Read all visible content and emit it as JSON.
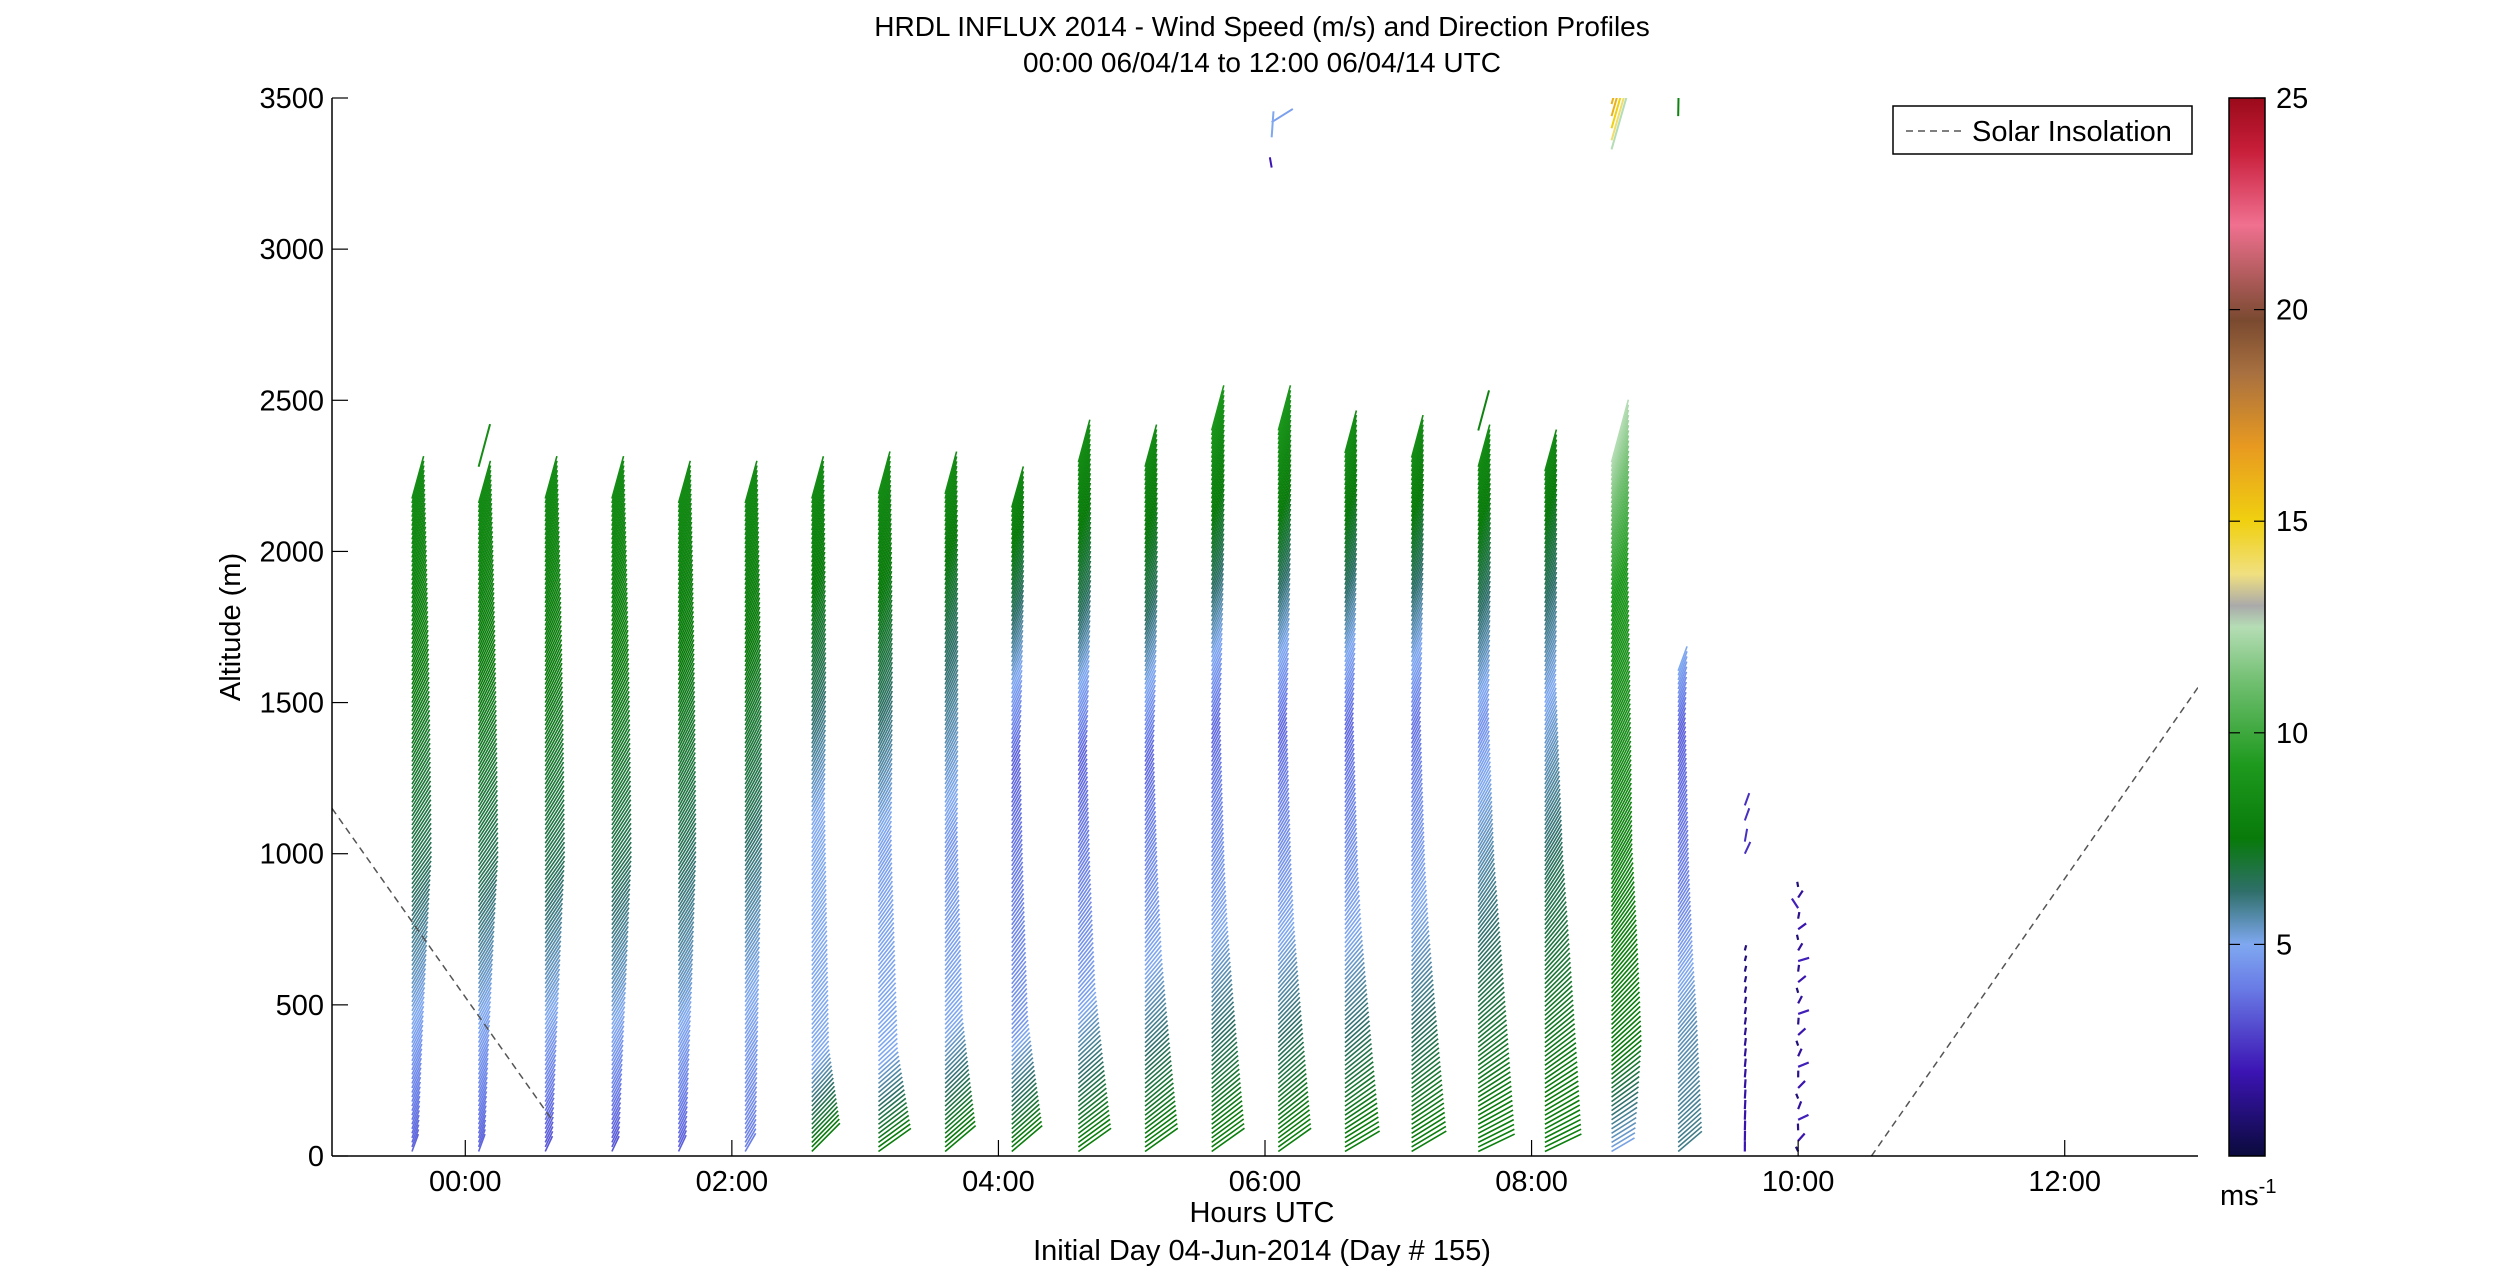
{
  "chart_data": {
    "type": "wind-profile-barbs",
    "title": "HRDL INFLUX 2014 - Wind Speed (m/s) and Direction Profiles",
    "subtitle": "00:00 06/04/14 to 12:00 06/04/14  UTC",
    "xlabel": "Hours UTC",
    "xlabel2": "Initial Day 04-Jun-2014 (Day # 155)",
    "ylabel": "Altitude (m)",
    "xlim": [
      -1.0,
      13.0
    ],
    "ylim": [
      0,
      3500
    ],
    "x_ticks": [
      0,
      2,
      4,
      6,
      8,
      10,
      12
    ],
    "x_tick_labels": [
      "00:00",
      "02:00",
      "04:00",
      "06:00",
      "08:00",
      "10:00",
      "12:00"
    ],
    "y_ticks": [
      0,
      500,
      1000,
      1500,
      2000,
      2500,
      3000,
      3500
    ],
    "y_tick_labels": [
      "0",
      "500",
      "1000",
      "1500",
      "2000",
      "2500",
      "3000",
      "3500"
    ],
    "grid": false,
    "legend": {
      "placement": "top-right",
      "entries": [
        {
          "label": "Solar Insolation",
          "style": "dashed",
          "color": "#555555"
        }
      ]
    },
    "solar_insolation": [
      {
        "x": [
          -1.0,
          0.65
        ],
        "y": [
          1150,
          120
        ]
      },
      {
        "x": [
          10.55,
          13.0
        ],
        "y": [
          0,
          1550
        ]
      }
    ],
    "colorbar": {
      "unit_label": "ms",
      "unit_exponent": "-1",
      "range": [
        0,
        25
      ],
      "ticks": [
        5,
        10,
        15,
        20,
        25
      ],
      "tick_labels": [
        "5",
        "10",
        "15",
        "20",
        "25"
      ],
      "colors": [
        "#0a0a3c",
        "#3c14b4",
        "#6a7de6",
        "#7fa8f0",
        "#2f6f6a",
        "#087a0a",
        "#1e9a1e",
        "#73c073",
        "#b5ddb5",
        "#aaaaaa",
        "#f0e080",
        "#f0d010",
        "#e89a20",
        "#a87040",
        "#7a4a30",
        "#f07090",
        "#c81e3a",
        "#9a0a1a"
      ],
      "stops": [
        0,
        0.08,
        0.16,
        0.2,
        0.25,
        0.3,
        0.37,
        0.45,
        0.5,
        0.52,
        0.55,
        0.6,
        0.67,
        0.74,
        0.79,
        0.88,
        0.95,
        1.0
      ]
    },
    "profiles": [
      {
        "time": -0.4,
        "top": 2180,
        "dir": [
          [
            0,
            200
          ],
          [
            900,
            215
          ],
          [
            2200,
            195
          ]
        ],
        "spd": [
          [
            0,
            3.5
          ],
          [
            500,
            5.2
          ],
          [
            900,
            6.5
          ],
          [
            2200,
            8.5
          ]
        ]
      },
      {
        "time": 0.1,
        "top": 2170,
        "dir": [
          [
            0,
            200
          ],
          [
            900,
            215
          ],
          [
            2200,
            195
          ]
        ],
        "spd": [
          [
            0,
            3.5
          ],
          [
            500,
            5.2
          ],
          [
            900,
            6.5
          ],
          [
            2200,
            8.5
          ]
        ],
        "extra": [
          {
            "alt": 2280,
            "dir": 195,
            "spd": 8.5
          }
        ]
      },
      {
        "time": 0.6,
        "top": 2180,
        "dir": [
          [
            0,
            205
          ],
          [
            900,
            215
          ],
          [
            2200,
            195
          ]
        ],
        "spd": [
          [
            0,
            3.2
          ],
          [
            500,
            5.2
          ],
          [
            900,
            6.5
          ],
          [
            2200,
            8.5
          ]
        ]
      },
      {
        "time": 1.1,
        "top": 2180,
        "dir": [
          [
            0,
            205
          ],
          [
            900,
            215
          ],
          [
            2200,
            195
          ]
        ],
        "spd": [
          [
            0,
            3.2
          ],
          [
            500,
            5.3
          ],
          [
            900,
            6.5
          ],
          [
            2200,
            8.5
          ]
        ]
      },
      {
        "time": 1.6,
        "top": 2170,
        "dir": [
          [
            0,
            205
          ],
          [
            900,
            212
          ],
          [
            2200,
            195
          ]
        ],
        "spd": [
          [
            0,
            3.4
          ],
          [
            500,
            5.3
          ],
          [
            1000,
            6.5
          ],
          [
            2200,
            8.5
          ]
        ]
      },
      {
        "time": 2.1,
        "top": 2170,
        "dir": [
          [
            0,
            210
          ],
          [
            900,
            212
          ],
          [
            2200,
            195
          ]
        ],
        "spd": [
          [
            0,
            4.0
          ],
          [
            600,
            5.2
          ],
          [
            1100,
            6.5
          ],
          [
            2200,
            8.5
          ]
        ]
      },
      {
        "time": 2.6,
        "top": 2180,
        "dir": [
          [
            0,
            225
          ],
          [
            900,
            212
          ],
          [
            2200,
            195
          ]
        ],
        "spd": [
          [
            0,
            7.8
          ],
          [
            300,
            5.0
          ],
          [
            1100,
            5.0
          ],
          [
            1500,
            6.5
          ],
          [
            2200,
            8.5
          ]
        ]
      },
      {
        "time": 3.1,
        "top": 2190,
        "dir": [
          [
            0,
            235
          ],
          [
            900,
            212
          ],
          [
            2200,
            195
          ]
        ],
        "spd": [
          [
            0,
            7.8
          ],
          [
            300,
            5.0
          ],
          [
            1000,
            4.8
          ],
          [
            1500,
            6.5
          ],
          [
            2200,
            8.5
          ]
        ]
      },
      {
        "time": 3.6,
        "top": 2190,
        "dir": [
          [
            0,
            230
          ],
          [
            900,
            212
          ],
          [
            2200,
            195
          ]
        ],
        "spd": [
          [
            0,
            7.8
          ],
          [
            400,
            5.0
          ],
          [
            1000,
            4.6
          ],
          [
            1700,
            6.5
          ],
          [
            2200,
            8.5
          ]
        ]
      },
      {
        "time": 4.1,
        "top": 2150,
        "dir": [
          [
            0,
            230
          ],
          [
            900,
            212
          ],
          [
            2200,
            195
          ]
        ],
        "spd": [
          [
            0,
            7.8
          ],
          [
            400,
            4.6
          ],
          [
            1300,
            3.5
          ],
          [
            1800,
            6.5
          ],
          [
            2200,
            8.5
          ]
        ]
      },
      {
        "time": 4.6,
        "top": 2300,
        "dir": [
          [
            0,
            235
          ],
          [
            900,
            212
          ],
          [
            2300,
            195
          ]
        ],
        "spd": [
          [
            0,
            7.8
          ],
          [
            500,
            4.8
          ],
          [
            1300,
            3.5
          ],
          [
            1800,
            6.5
          ],
          [
            2300,
            8.5
          ]
        ]
      },
      {
        "time": 5.1,
        "top": 2290,
        "dir": [
          [
            0,
            235
          ],
          [
            900,
            212
          ],
          [
            2300,
            195
          ]
        ],
        "spd": [
          [
            0,
            7.8
          ],
          [
            600,
            5.0
          ],
          [
            1300,
            3.6
          ],
          [
            1800,
            6.5
          ],
          [
            2300,
            8.5
          ]
        ]
      },
      {
        "time": 5.6,
        "top": 2410,
        "dir": [
          [
            0,
            235
          ],
          [
            900,
            212
          ],
          [
            2400,
            195
          ]
        ],
        "spd": [
          [
            0,
            7.8
          ],
          [
            700,
            5.0
          ],
          [
            1400,
            3.6
          ],
          [
            1900,
            6.5
          ],
          [
            2400,
            9.0
          ]
        ]
      },
      {
        "time": 6.1,
        "top": 2410,
        "dir": [
          [
            0,
            235
          ],
          [
            900,
            212
          ],
          [
            2400,
            195
          ]
        ],
        "spd": [
          [
            0,
            7.8
          ],
          [
            700,
            5.0
          ],
          [
            1400,
            3.6
          ],
          [
            1900,
            6.5
          ],
          [
            2400,
            9.0
          ]
        ]
      },
      {
        "time": 6.6,
        "top": 2330,
        "dir": [
          [
            0,
            240
          ],
          [
            900,
            212
          ],
          [
            2300,
            195
          ]
        ],
        "spd": [
          [
            0,
            7.8
          ],
          [
            700,
            5.0
          ],
          [
            1400,
            3.6
          ],
          [
            1900,
            6.5
          ],
          [
            2300,
            8.5
          ]
        ]
      },
      {
        "time": 7.1,
        "top": 2310,
        "dir": [
          [
            0,
            240
          ],
          [
            900,
            212
          ],
          [
            2300,
            195
          ]
        ],
        "spd": [
          [
            0,
            7.8
          ],
          [
            700,
            5.2
          ],
          [
            1400,
            3.8
          ],
          [
            1900,
            6.5
          ],
          [
            2300,
            8.5
          ]
        ]
      },
      {
        "time": 7.6,
        "top": 2290,
        "dir": [
          [
            0,
            245
          ],
          [
            900,
            212
          ],
          [
            2300,
            195
          ]
        ],
        "spd": [
          [
            0,
            7.8
          ],
          [
            800,
            6.0
          ],
          [
            1400,
            4.5
          ],
          [
            1900,
            6.8
          ],
          [
            2300,
            8.5
          ]
        ],
        "extra": [
          {
            "alt": 2400,
            "dir": 195,
            "spd": 8.0
          }
        ]
      },
      {
        "time": 8.1,
        "top": 2270,
        "dir": [
          [
            0,
            245
          ],
          [
            900,
            212
          ],
          [
            2300,
            195
          ]
        ],
        "spd": [
          [
            0,
            7.8
          ],
          [
            900,
            6.5
          ],
          [
            1500,
            5.0
          ],
          [
            2000,
            7.0
          ],
          [
            2300,
            8.5
          ]
        ]
      },
      {
        "time": 8.6,
        "top": 2300,
        "dir": [
          [
            0,
            240
          ],
          [
            900,
            210
          ],
          [
            2300,
            195
          ]
        ],
        "spd": [
          [
            0,
            5.0
          ],
          [
            300,
            7.5
          ],
          [
            1000,
            8.0
          ],
          [
            1800,
            9.0
          ],
          [
            2300,
            12.5
          ]
        ],
        "extra": [
          {
            "alt": 3480,
            "dir": 196,
            "spd": 16.0
          },
          {
            "alt": 3440,
            "dir": 196,
            "spd": 16.0
          },
          {
            "alt": 3400,
            "dir": 196,
            "spd": 15.0
          },
          {
            "alt": 3360,
            "dir": 196,
            "spd": 14.0
          },
          {
            "alt": 3330,
            "dir": 196,
            "spd": 12.5
          }
        ]
      },
      {
        "time": 9.1,
        "top": 1610,
        "dir": [
          [
            0,
            230
          ],
          [
            600,
            215
          ],
          [
            1600,
            200
          ]
        ],
        "spd": [
          [
            0,
            6.0
          ],
          [
            400,
            5.5
          ],
          [
            900,
            4.0
          ],
          [
            1400,
            3.5
          ],
          [
            1600,
            5.0
          ]
        ],
        "extra": [
          {
            "alt": 3440,
            "dir": 181,
            "spd": 8.0
          }
        ]
      },
      {
        "time": 9.6,
        "top": 700,
        "sparse": true,
        "dir": [
          [
            0,
            180
          ],
          [
            700,
            195
          ]
        ],
        "spd": [
          [
            0,
            2.0
          ],
          [
            700,
            1.0
          ]
        ],
        "extra": [
          {
            "alt": 1160,
            "dir": 200,
            "spd": 2.5
          },
          {
            "alt": 1110,
            "dir": 200,
            "spd": 2.5
          },
          {
            "alt": 1040,
            "dir": 190,
            "spd": 2.5
          },
          {
            "alt": 1000,
            "dir": 205,
            "spd": 2.5
          }
        ]
      },
      {
        "time": 10.0,
        "top": 900,
        "sparse": true,
        "scatter": true,
        "dir": [
          [
            0,
            210
          ],
          [
            900,
            200
          ]
        ],
        "spd": [
          [
            0,
            1.0
          ],
          [
            900,
            1.0
          ]
        ]
      }
    ],
    "top_fragments": [
      {
        "time": 6.05,
        "alt": 3420,
        "dir": 238,
        "spd": 4.8
      },
      {
        "time": 6.05,
        "alt": 3370,
        "dir": 184,
        "spd": 5.0
      },
      {
        "time": 6.05,
        "alt": 3270,
        "dir": 170,
        "spd": 2.0
      }
    ]
  }
}
